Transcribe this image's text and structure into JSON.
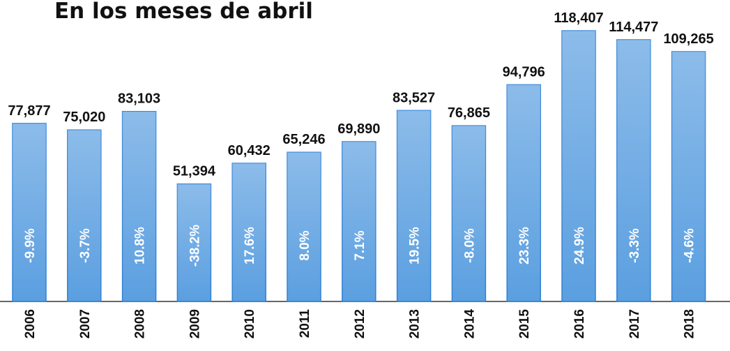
{
  "chart_data": {
    "type": "bar",
    "title": "En los meses de abril",
    "categories": [
      "2006",
      "2007",
      "2008",
      "2009",
      "2010",
      "2011",
      "2012",
      "2013",
      "2014",
      "2015",
      "2016",
      "2017",
      "2018"
    ],
    "values": [
      77877,
      75020,
      83103,
      51394,
      60432,
      65246,
      69890,
      83527,
      76865,
      94796,
      118407,
      114477,
      109265
    ],
    "value_labels": [
      "77,877",
      "75,020",
      "83,103",
      "51,394",
      "60,432",
      "65,246",
      "69,890",
      "83,527",
      "76,865",
      "94,796",
      "118,407",
      "114,477",
      "109,265"
    ],
    "inner_labels": [
      "-9.9%",
      "-3.7%",
      "10.8%",
      "-38.2%",
      "17.6%",
      "8.0%",
      "7.1%",
      "19.5%",
      "-8.0%",
      "23.3%",
      "24.9%",
      "-3.3%",
      "-4.6%"
    ],
    "color": "#5b9fe0",
    "ylim": [
      0,
      122700
    ]
  }
}
